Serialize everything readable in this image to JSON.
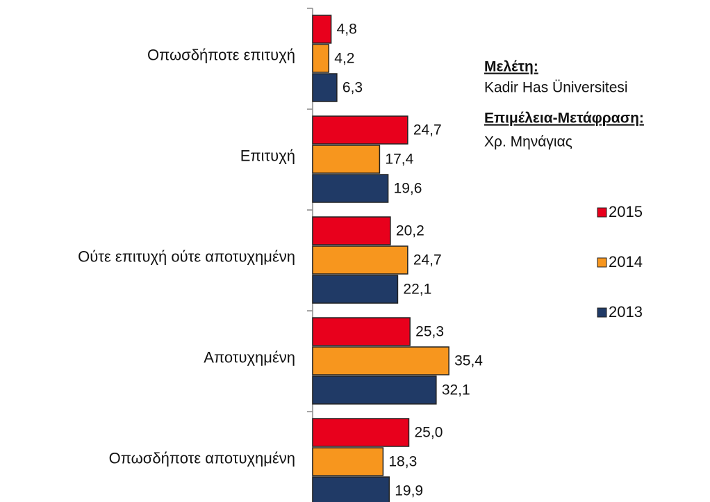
{
  "chart_data": {
    "type": "bar",
    "orientation": "horizontal",
    "categories": [
      "Οπωσδήποτε επιτυχή",
      "Επιτυχή",
      "Ούτε επιτυχή ούτε αποτυχημένη",
      "Αποτυχημένη",
      "Οπωσδήποτε αποτυχημένη"
    ],
    "series": [
      {
        "name": "2015",
        "color": "#e8001c",
        "values": [
          4.8,
          24.7,
          20.2,
          25.3,
          25.0
        ],
        "value_labels": [
          "4,8",
          "24,7",
          "20,2",
          "25,3",
          "25,0"
        ]
      },
      {
        "name": "2014",
        "color": "#f7961e",
        "values": [
          4.2,
          17.4,
          24.7,
          35.4,
          18.3
        ],
        "value_labels": [
          "4,2",
          "17,4",
          "24,7",
          "35,4",
          "18,3"
        ]
      },
      {
        "name": "2013",
        "color": "#203a66",
        "values": [
          6.3,
          19.6,
          22.1,
          32.1,
          19.9
        ],
        "value_labels": [
          "6,3",
          "19,6",
          "22,1",
          "32,1",
          "19,9"
        ]
      }
    ],
    "xlim": [
      0,
      50
    ],
    "annotations": [
      "Μελέτη:",
      "Kadir Has Üniversitesi",
      "Επιμέλεια-Μετάφραση:",
      "Χρ. Μηνάγιας"
    ]
  }
}
